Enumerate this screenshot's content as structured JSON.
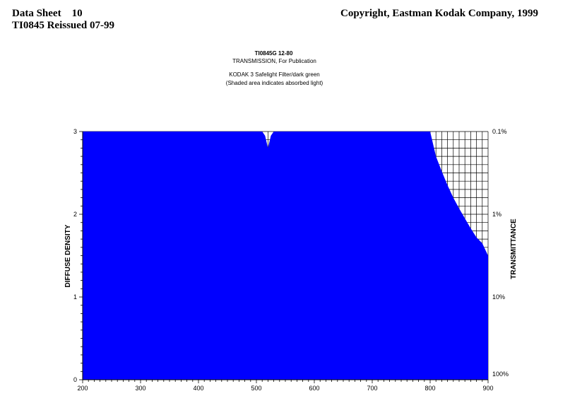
{
  "header": {
    "data_sheet": "Data Sheet    10",
    "reissue": "TI0845 Reissued 07-99",
    "copyright": "Copyright, Eastman Kodak Company, 1999"
  },
  "chart_titles": {
    "code": "TI0845G 12-80",
    "subtitle": "TRANSMISSION, For Publication",
    "filter": "KODAK 3 Safelight Filter/dark green",
    "note": "(Shaded area indicates absorbed light)"
  },
  "colors": {
    "fill": "#0000ff",
    "grid": "#000000",
    "background": "#ffffff"
  },
  "chart_data": {
    "type": "area",
    "title": "TI0845G 12-80",
    "subtitle": "TRANSMISSION, For Publication",
    "ylabel": "DIFFUSE DENSITY",
    "y2label": "TRANSMITTANCE",
    "xlim": [
      200,
      900
    ],
    "ylim": [
      0,
      3
    ],
    "x_ticks": [
      200,
      300,
      400,
      500,
      600,
      700,
      800,
      900
    ],
    "y_ticks": [
      0,
      1,
      2,
      3
    ],
    "y2_ticks": [
      "0.1%",
      "1%",
      "10%",
      "100%"
    ],
    "y2_values": [
      3,
      2,
      1,
      0
    ],
    "grid": "visible only in unshaded area",
    "series": [
      {
        "x": [
          200,
          510,
          515,
          520,
          525,
          530,
          800,
          805,
          810,
          820,
          830,
          840,
          850,
          860,
          870,
          880,
          890,
          900
        ],
        "values": [
          3.0,
          3.0,
          2.95,
          2.8,
          2.95,
          3.0,
          3.0,
          2.85,
          2.7,
          2.52,
          2.35,
          2.2,
          2.07,
          1.95,
          1.83,
          1.72,
          1.65,
          1.5
        ]
      }
    ]
  }
}
